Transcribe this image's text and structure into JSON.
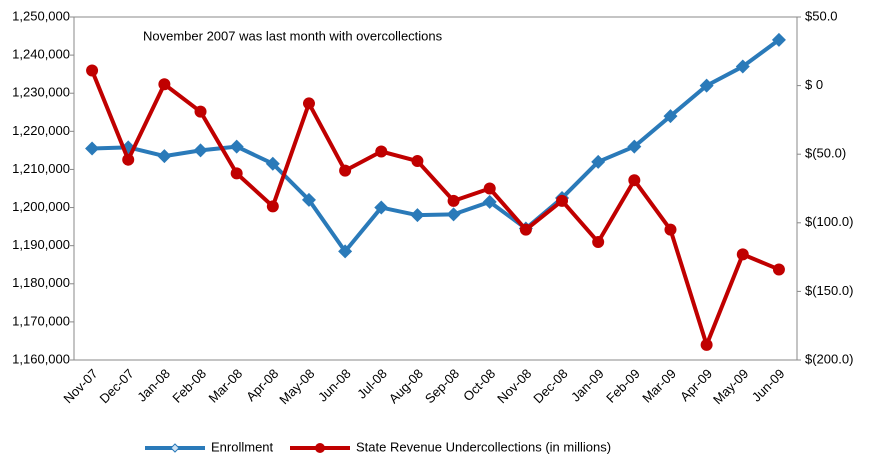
{
  "chart_data": {
    "type": "line",
    "annotation": "November 2007 was last month with overcollections",
    "categories": [
      "Nov-07",
      "Dec-07",
      "Jan-08",
      "Feb-08",
      "Mar-08",
      "Apr-08",
      "May-08",
      "Jun-08",
      "Jul-08",
      "Aug-08",
      "Sep-08",
      "Oct-08",
      "Nov-08",
      "Dec-08",
      "Jan-09",
      "Feb-09",
      "Mar-09",
      "Apr-09",
      "May-09",
      "Jun-09"
    ],
    "series": [
      {
        "name": "Enrollment",
        "color": "#2a7ab9",
        "axis": "y",
        "marker": "diamond",
        "values": [
          1215500,
          1215800,
          1213500,
          1215000,
          1216000,
          1211500,
          1202000,
          1188500,
          1200000,
          1198000,
          1198200,
          1201500,
          1194500,
          1202500,
          1212000,
          1216000,
          1224000,
          1232000,
          1237000,
          1244000
        ]
      },
      {
        "name": "State Revenue Undercollections (in millions)",
        "color": "#c00000",
        "axis": "y2",
        "marker": "circle",
        "values": [
          11,
          -54,
          1,
          -19,
          -64,
          -88,
          -13,
          -62,
          -48,
          -55,
          -84,
          -75,
          -105,
          -84,
          -114,
          -69,
          -105,
          -189,
          -123,
          -134
        ]
      }
    ],
    "ylim": [
      1160000,
      1250000
    ],
    "yticks": [
      {
        "value": 1160000,
        "label": "1,160,000"
      },
      {
        "value": 1170000,
        "label": "1,170,000"
      },
      {
        "value": 1180000,
        "label": "1,180,000"
      },
      {
        "value": 1190000,
        "label": "1,190,000"
      },
      {
        "value": 1200000,
        "label": "1,200,000"
      },
      {
        "value": 1210000,
        "label": "1,210,000"
      },
      {
        "value": 1220000,
        "label": "1,220,000"
      },
      {
        "value": 1230000,
        "label": "1,230,000"
      },
      {
        "value": 1240000,
        "label": "1,240,000"
      },
      {
        "value": 1250000,
        "label": "1,250,000"
      }
    ],
    "y2lim": [
      -200,
      50
    ],
    "y2ticks": [
      {
        "value": 50,
        "label": "$50.0"
      },
      {
        "value": 0,
        "label": "$ 0"
      },
      {
        "value": -50,
        "label": "$(50.0)"
      },
      {
        "value": -100,
        "label": "$(100.0)"
      },
      {
        "value": -150,
        "label": "$(150.0)"
      },
      {
        "value": -200,
        "label": "$(200.0)"
      }
    ],
    "legend": "bottom"
  }
}
